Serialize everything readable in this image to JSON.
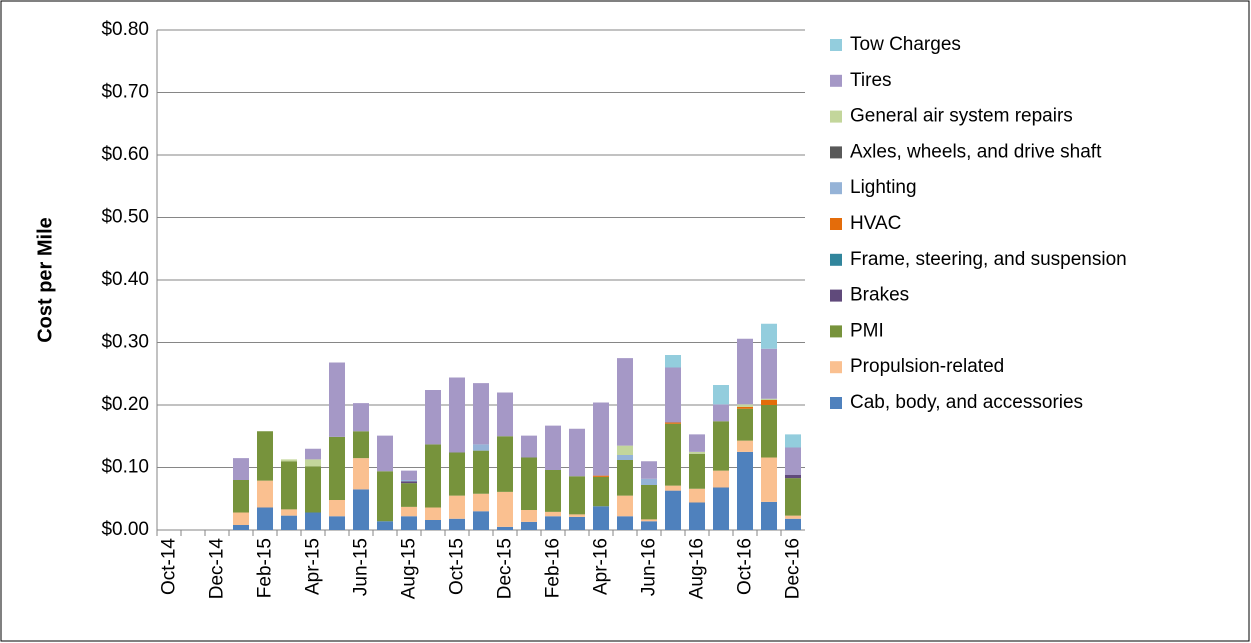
{
  "chart_data": {
    "type": "stacked_bar",
    "y_label": "Cost per Mile",
    "categories": [
      "Oct-14",
      null,
      "Dec-14",
      null,
      "Feb-15",
      null,
      "Apr-15",
      null,
      "Jun-15",
      null,
      "Aug-15",
      null,
      "Oct-15",
      null,
      "Dec-15",
      null,
      "Feb-16",
      null,
      "Apr-16",
      null,
      "Jun-16",
      null,
      "Aug-16",
      null,
      "Oct-16",
      null,
      "Dec-16"
    ],
    "ylim": [
      0,
      0.8
    ],
    "yticks": [
      {
        "value": 0,
        "label": "$0.00"
      },
      {
        "value": 0.1,
        "label": "$0.10"
      },
      {
        "value": 0.2,
        "label": "$0.20"
      },
      {
        "value": 0.3,
        "label": "$0.30"
      },
      {
        "value": 0.4,
        "label": "$0.40"
      },
      {
        "value": 0.5,
        "label": "$0.50"
      },
      {
        "value": 0.6,
        "label": "$0.60"
      },
      {
        "value": 0.7,
        "label": "$0.70"
      },
      {
        "value": 0.8,
        "label": "$0.80"
      }
    ],
    "grid": true,
    "legend": "right",
    "series": [
      {
        "name": "Cab, body, and accessories",
        "color": "#4f81bd",
        "values": [
          0,
          0,
          0,
          0.008,
          0.036,
          0.023,
          0.028,
          0.022,
          0.065,
          0.014,
          0.022,
          0.016,
          0.018,
          0.03,
          0.005,
          0.013,
          0.022,
          0.021,
          0.038,
          0.022,
          0.014,
          0.063,
          0.044,
          0.068,
          0.125,
          0.045,
          0.018
        ]
      },
      {
        "name": "Propulsion-related",
        "color": "#fac090",
        "values": [
          0,
          0,
          0,
          0.02,
          0.043,
          0.01,
          0,
          0.026,
          0.05,
          0,
          0.015,
          0.02,
          0.037,
          0.028,
          0.056,
          0.019,
          0.007,
          0.004,
          0,
          0.033,
          0.003,
          0.008,
          0.022,
          0.027,
          0.018,
          0.071,
          0.005
        ]
      },
      {
        "name": "PMI",
        "color": "#77933c",
        "values": [
          0,
          0,
          0,
          0.052,
          0.079,
          0.077,
          0.074,
          0.101,
          0.043,
          0.08,
          0.038,
          0.101,
          0.069,
          0.069,
          0.089,
          0.084,
          0.067,
          0.061,
          0.047,
          0.057,
          0.055,
          0.099,
          0.056,
          0.079,
          0.051,
          0.084,
          0.06
        ]
      },
      {
        "name": "Brakes",
        "color": "#604a7b",
        "values": [
          0,
          0,
          0,
          0,
          0,
          0,
          0,
          0,
          0,
          0,
          0.003,
          0,
          0,
          0,
          0,
          0,
          0,
          0,
          0,
          0,
          0,
          0,
          0,
          0,
          0,
          0,
          0.005
        ]
      },
      {
        "name": "Frame, steering, and suspension",
        "color": "#31859c",
        "values": [
          0,
          0,
          0,
          0,
          0,
          0,
          0,
          0,
          0,
          0,
          0,
          0,
          0,
          0,
          0,
          0,
          0,
          0,
          0,
          0,
          0,
          0,
          0,
          0,
          0,
          0,
          0
        ]
      },
      {
        "name": "HVAC",
        "color": "#e46c0a",
        "values": [
          0,
          0,
          0,
          0,
          0,
          0,
          0,
          0,
          0,
          0,
          0,
          0,
          0,
          0,
          0,
          0,
          0,
          0,
          0.002,
          0,
          0,
          0.002,
          0,
          0,
          0.003,
          0.008,
          0
        ]
      },
      {
        "name": "Lighting",
        "color": "#95b3d7",
        "values": [
          0,
          0,
          0,
          0,
          0,
          0,
          0,
          0,
          0,
          0,
          0.002,
          0,
          0,
          0.01,
          0,
          0,
          0,
          0,
          0,
          0.008,
          0.01,
          0,
          0,
          0,
          0,
          0,
          0
        ]
      },
      {
        "name": "Axles, wheels, and drive shaft",
        "color": "#595959",
        "values": [
          0,
          0,
          0,
          0,
          0,
          0,
          0,
          0,
          0,
          0,
          0,
          0,
          0,
          0,
          0,
          0,
          0,
          0,
          0,
          0,
          0,
          0,
          0,
          0,
          0,
          0,
          0
        ]
      },
      {
        "name": "General air system repairs",
        "color": "#c3d69b",
        "values": [
          0,
          0,
          0,
          0,
          0,
          0.003,
          0.011,
          0,
          0,
          0,
          0,
          0,
          0,
          0,
          0,
          0,
          0,
          0,
          0,
          0.015,
          0,
          0,
          0.003,
          0,
          0.004,
          0.002,
          0
        ]
      },
      {
        "name": "Tires",
        "color": "#a598c6",
        "values": [
          0,
          0,
          0,
          0.035,
          0,
          0,
          0.017,
          0.119,
          0.045,
          0.057,
          0.015,
          0.087,
          0.12,
          0.098,
          0.07,
          0.035,
          0.071,
          0.076,
          0.117,
          0.14,
          0.028,
          0.088,
          0.028,
          0.027,
          0.105,
          0.08,
          0.044
        ]
      },
      {
        "name": "Tow Charges",
        "color": "#93cddd",
        "values": [
          0,
          0,
          0,
          0,
          0,
          0,
          0,
          0,
          0,
          0,
          0,
          0,
          0,
          0,
          0,
          0,
          0,
          0,
          0,
          0,
          0,
          0.02,
          0,
          0.031,
          0,
          0.04,
          0.021
        ]
      }
    ]
  }
}
